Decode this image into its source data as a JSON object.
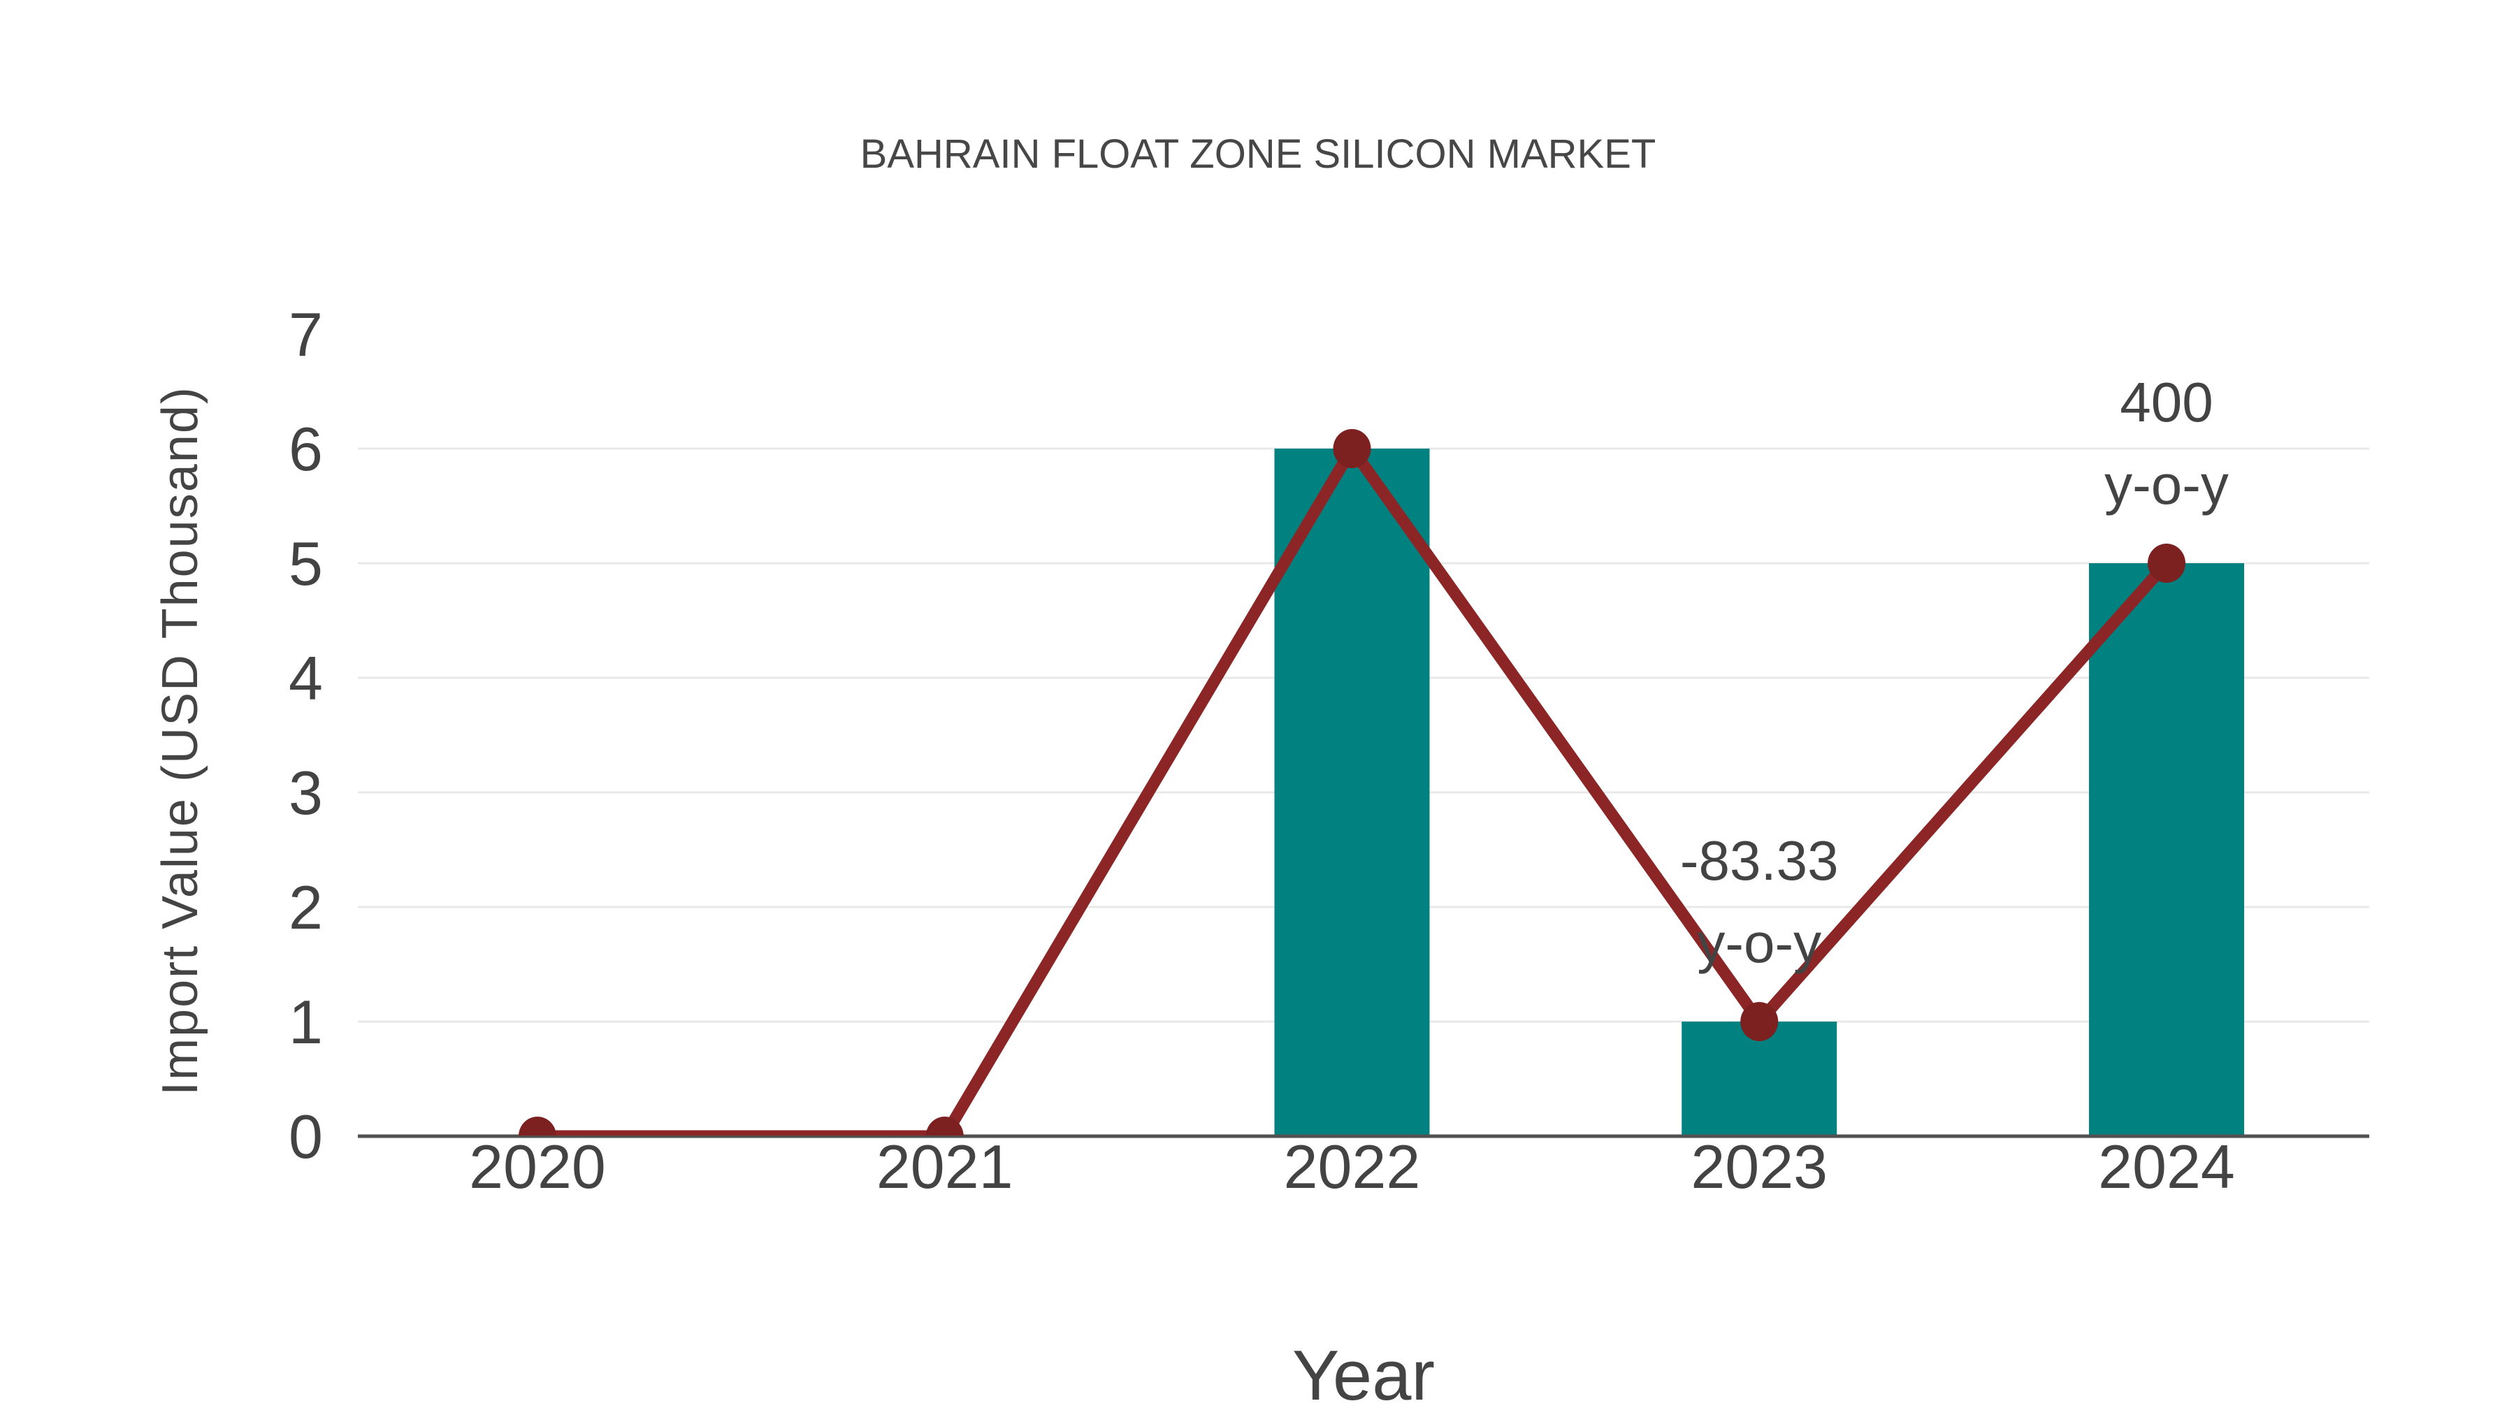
{
  "title": "BAHRAIN FLOAT ZONE SILICON MARKET",
  "chart_data": {
    "type": "bar",
    "title": "BAHRAIN FLOAT ZONE SILICON MARKET",
    "xlabel": "Year",
    "ylabel": "Import Value (USD Thousand)",
    "categories": [
      "2020",
      "2021",
      "2022",
      "2023",
      "2024"
    ],
    "series": [
      {
        "name": "Import Value bars",
        "type": "bar",
        "values": [
          0,
          0,
          6,
          1,
          5
        ]
      },
      {
        "name": "Import Value line",
        "type": "line",
        "values": [
          0,
          0,
          6,
          1,
          5
        ]
      }
    ],
    "annotations": [
      {
        "category": "2023",
        "value": 1,
        "lines": [
          "-83.33",
          "y-o-y"
        ]
      },
      {
        "category": "2024",
        "value": 5,
        "lines": [
          "400",
          "y-o-y"
        ]
      }
    ],
    "ylim": [
      0,
      7
    ],
    "yticks": [
      0,
      1,
      2,
      3,
      4,
      5,
      6,
      7
    ],
    "gridline_values": [
      1,
      2,
      3,
      4,
      5,
      6
    ],
    "grid": "horizontal",
    "legend_position": "none"
  },
  "colors": {
    "bar": "#028181",
    "line": "#8c2626",
    "marker": "#7c2020",
    "grid": "#e8e8e8",
    "axis": "#515151",
    "text": "#434343",
    "background": "#ffffff"
  }
}
